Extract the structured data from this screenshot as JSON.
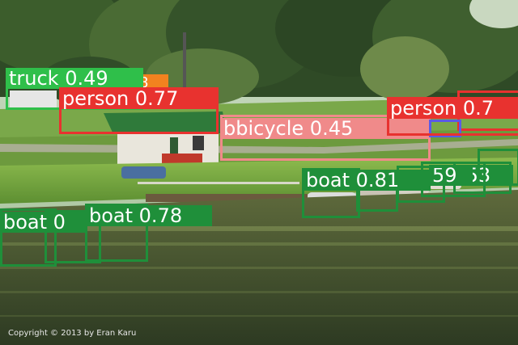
{
  "photo": {
    "copyright": "Copyright © 2013 by Eran Karu"
  },
  "colors": {
    "truck": "#2fbf4a",
    "person": "#e8322f",
    "bicycle": "#f08a8a",
    "boat": "#1f8f3a",
    "orange_tag": "#f2821f",
    "blue_tag": "#5a5ae6"
  },
  "detections": [
    {
      "label": "truck 0.49",
      "class": "truck",
      "confidence": 0.49
    },
    {
      "label": "8",
      "class": "orange-tag"
    },
    {
      "label": "person 0.77",
      "class": "person",
      "confidence": 0.77
    },
    {
      "label": "person 0.7",
      "class": "person",
      "confidence": 0.7
    },
    {
      "label": "bbicycle 0.45",
      "class": "bicycle"
    },
    {
      "label": "boat 0.81",
      "class": "boat",
      "confidence": 0.81
    },
    {
      "label": "59",
      "class": "boat"
    },
    {
      "label": ".53",
      "class": "boat"
    },
    {
      "label": "boat 0",
      "class": "boat"
    },
    {
      "label": "boat 0.78",
      "class": "boat",
      "confidence": 0.78
    }
  ]
}
